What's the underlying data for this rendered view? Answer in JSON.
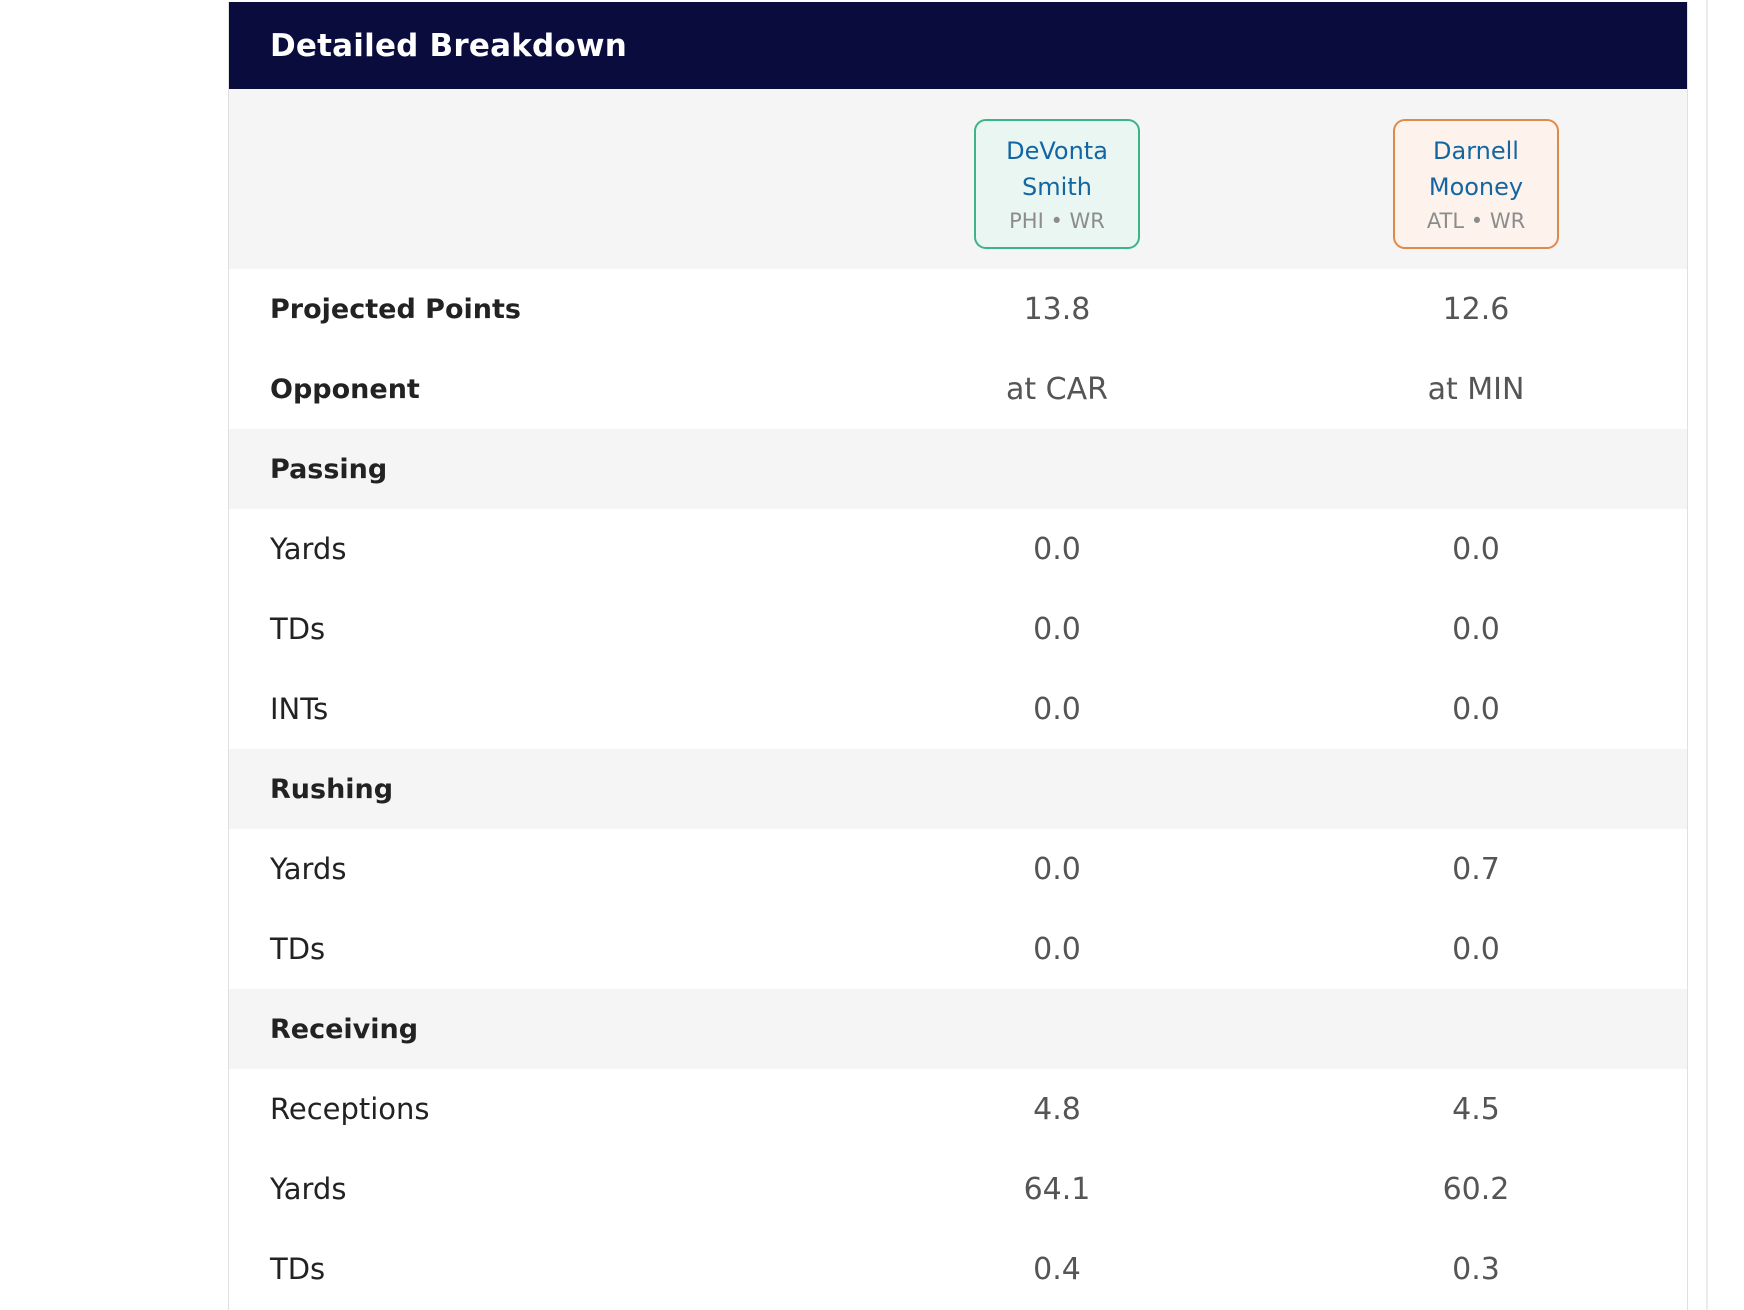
{
  "breakdown": {
    "title": "Detailed Breakdown",
    "players": [
      {
        "name_line1": "DeVonta",
        "name_line2": "Smith",
        "team": "PHI",
        "position": "WR",
        "meta": "PHI • WR",
        "accent": "#3bb585"
      },
      {
        "name_line1": "Darnell",
        "name_line2": "Mooney",
        "team": "ATL",
        "position": "WR",
        "meta": "ATL • WR",
        "accent": "#e08a4a"
      }
    ],
    "summary": {
      "projected_points": {
        "label": "Projected Points",
        "p1": "13.8",
        "p2": "12.6"
      },
      "opponent": {
        "label": "Opponent",
        "p1": "at CAR",
        "p2": "at MIN"
      }
    },
    "passing": {
      "label": "Passing",
      "yards": {
        "label": "Yards",
        "p1": "0.0",
        "p2": "0.0"
      },
      "tds": {
        "label": "TDs",
        "p1": "0.0",
        "p2": "0.0"
      },
      "ints": {
        "label": "INTs",
        "p1": "0.0",
        "p2": "0.0"
      }
    },
    "rushing": {
      "label": "Rushing",
      "yards": {
        "label": "Yards",
        "p1": "0.0",
        "p2": "0.7"
      },
      "tds": {
        "label": "TDs",
        "p1": "0.0",
        "p2": "0.0"
      }
    },
    "receiving": {
      "label": "Receiving",
      "receptions": {
        "label": "Receptions",
        "p1": "4.8",
        "p2": "4.5"
      },
      "yards": {
        "label": "Yards",
        "p1": "64.1",
        "p2": "60.2"
      },
      "tds": {
        "label": "TDs",
        "p1": "0.4",
        "p2": "0.3"
      }
    },
    "colors": {
      "header_bg": "#0a0c3d",
      "section_bg": "#f5f5f6",
      "name_color": "#1466a3"
    }
  }
}
